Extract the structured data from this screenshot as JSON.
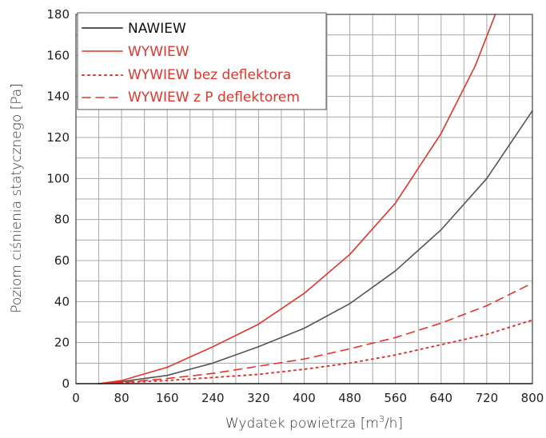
{
  "chart_data": {
    "type": "line",
    "xlabel_main": "Wydatek powietrza [m",
    "xlabel_sup": "3",
    "xlabel_tail": "/h]",
    "ylabel": "Poziom ciśnienia statycznego [Pa]",
    "xlim": [
      0,
      800
    ],
    "ylim": [
      0,
      180
    ],
    "x_ticks": [
      0,
      80,
      160,
      240,
      320,
      400,
      480,
      560,
      640,
      720,
      800
    ],
    "y_ticks": [
      0,
      20,
      40,
      60,
      80,
      100,
      120,
      140,
      160,
      180
    ],
    "grid": true,
    "legend_position": "top-left",
    "series": [
      {
        "name": "NAWIEW",
        "color": "#555555",
        "dash": "solid",
        "x": [
          40,
          80,
          160,
          240,
          320,
          400,
          480,
          560,
          640,
          720,
          800
        ],
        "y": [
          0,
          1,
          4,
          10,
          18,
          27,
          39,
          55,
          75,
          100,
          133
        ]
      },
      {
        "name": "WYWIEW",
        "color": "#e5332a",
        "dash": "solid",
        "x": [
          40,
          80,
          160,
          240,
          320,
          400,
          480,
          560,
          640,
          700,
          735
        ],
        "y": [
          0,
          1.5,
          8,
          18,
          29,
          44,
          63,
          88,
          122,
          155,
          180
        ]
      },
      {
        "name": "WYWIEW bez deflektora",
        "color": "#e5332a",
        "dash": "dotted",
        "x": [
          40,
          80,
          160,
          240,
          320,
          400,
          480,
          560,
          640,
          720,
          800
        ],
        "y": [
          0,
          0.5,
          1.5,
          3,
          4.5,
          7,
          10,
          14,
          19,
          24,
          31
        ]
      },
      {
        "name": "WYWIEW z P deflektorem",
        "color": "#e5332a",
        "dash": "dashed",
        "x": [
          40,
          80,
          160,
          240,
          320,
          400,
          480,
          560,
          640,
          720,
          800
        ],
        "y": [
          0,
          0.5,
          2.5,
          5,
          8.5,
          12,
          17,
          22.5,
          29.5,
          38,
          49
        ]
      }
    ]
  }
}
